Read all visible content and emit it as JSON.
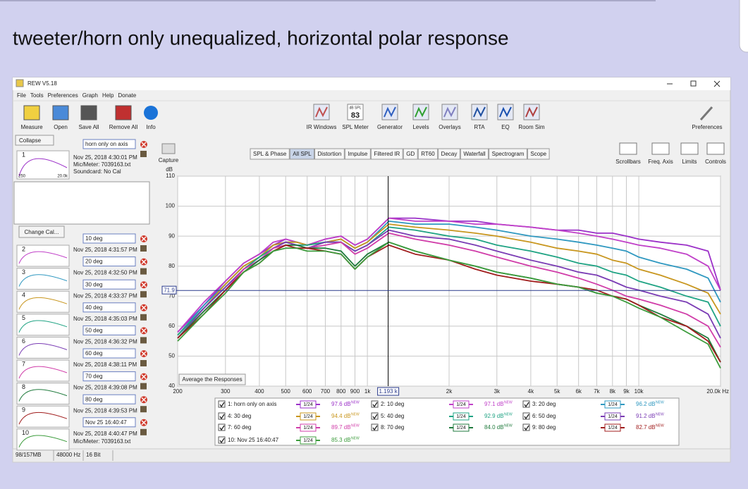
{
  "post": {
    "heading": "tweeter/horn only unequalized, horizontal polar response"
  },
  "window": {
    "title": "REW V5.18",
    "menu": [
      "File",
      "Tools",
      "Preferences",
      "Graph",
      "Help",
      "Donate"
    ],
    "toolbar_left": [
      "Measure",
      "Open",
      "Save All",
      "Remove All",
      "Info"
    ],
    "toolbar_mid": [
      "IR Windows",
      "SPL Meter",
      "Generator",
      "Levels",
      "Overlays",
      "RTA",
      "EQ",
      "Room Sim"
    ],
    "spl_meter": {
      "unit": "dB SPL",
      "reading": "83"
    },
    "toolbar_right": "Preferences",
    "capture": "Capture",
    "tabs": [
      {
        "label": "SPL & Phase"
      },
      {
        "label": "All SPL",
        "active": true
      },
      {
        "label": "Distortion"
      },
      {
        "label": "Impulse"
      },
      {
        "label": "Filtered IR"
      },
      {
        "label": "GD"
      },
      {
        "label": "RT60"
      },
      {
        "label": "Decay"
      },
      {
        "label": "Waterfall"
      },
      {
        "label": "Spectrogram"
      },
      {
        "label": "Scope"
      }
    ],
    "graph_tools": [
      "Scrollbars",
      "Freq. Axis",
      "Limits",
      "Controls"
    ],
    "collapse": "Collapse",
    "change_cal": "Change Cal...",
    "average_button": "Average the Responses",
    "measurements": [
      {
        "number": "1",
        "name": "horn only on axis",
        "date": "Nov 25, 2018 4:30:01 PM",
        "mic": "Mic/Meter: 7039163.txt",
        "soundcard": "Soundcard: No Cal",
        "thumb_range": [
          "250",
          "20.0k"
        ]
      },
      {
        "number": "2",
        "name": "10 deg",
        "date": "Nov 25, 2018 4:31:57 PM"
      },
      {
        "number": "3",
        "name": "20 deg",
        "date": "Nov 25, 2018 4:32:50 PM"
      },
      {
        "number": "4",
        "name": "30 deg",
        "date": "Nov 25, 2018 4:33:37 PM"
      },
      {
        "number": "5",
        "name": "40 deg",
        "date": "Nov 25, 2018 4:35:03 PM"
      },
      {
        "number": "6",
        "name": "50 deg",
        "date": "Nov 25, 2018 4:36:32 PM"
      },
      {
        "number": "7",
        "name": "60 deg",
        "date": "Nov 25, 2018 4:38:11 PM"
      },
      {
        "number": "8",
        "name": "70 deg",
        "date": "Nov 25, 2018 4:39:08 PM"
      },
      {
        "number": "9",
        "name": "80 deg",
        "date": "Nov 25, 2018 4:39:53 PM"
      },
      {
        "number": "10",
        "name": "Nov 25 16:40:47",
        "date": "Nov 25, 2018 4:40:47 PM",
        "mic": "Mic/Meter: 7039163.txt"
      }
    ],
    "status": [
      "98/157MB",
      "48000 Hz",
      "16 Bit"
    ]
  },
  "chart_data": {
    "type": "line",
    "xscale": "log",
    "grid": true,
    "ylabel": "dB",
    "xlim": [
      200,
      20000
    ],
    "ylim": [
      40,
      110
    ],
    "xticks": [
      200,
      300,
      400,
      500,
      600,
      700,
      800,
      900,
      {
        "value": 1000,
        "label": "1k"
      },
      {
        "value": 2000,
        "label": "2k"
      },
      {
        "value": 3000,
        "label": "3k"
      },
      {
        "value": 4000,
        "label": "4k"
      },
      {
        "value": 5000,
        "label": "5k"
      },
      {
        "value": 6000,
        "label": "6k"
      },
      {
        "value": 7000,
        "label": "7k"
      },
      {
        "value": 8000,
        "label": "8k"
      },
      {
        "value": 9000,
        "label": "9k"
      },
      {
        "value": 10000,
        "label": "10k"
      },
      {
        "value": 20000,
        "label": "20.0k Hz"
      }
    ],
    "yticks": [
      40,
      50,
      60,
      70,
      80,
      90,
      100,
      110
    ],
    "cursor": {
      "x": {
        "value": 1193,
        "label": "1.193 k"
      },
      "y": 71.9
    },
    "legend_smoothing": "1/24",
    "legend_tag": "NEW",
    "x": [
      200,
      250,
      300,
      350,
      400,
      450,
      500,
      550,
      600,
      700,
      800,
      900,
      1000,
      1200,
      1500,
      2000,
      2500,
      3000,
      4000,
      5000,
      6000,
      7000,
      8000,
      9000,
      10000,
      12000,
      15000,
      18000,
      20000
    ],
    "series": [
      {
        "name": "1: horn only on axis",
        "color": "#9b30c8",
        "level": "97.6 dB",
        "values": [
          58,
          67,
          75,
          81,
          84,
          87,
          89,
          88,
          87,
          89,
          90,
          87,
          89,
          96,
          96,
          95,
          95,
          94,
          93,
          92,
          92,
          91,
          91,
          90,
          89,
          88,
          87,
          85,
          72
        ]
      },
      {
        "name": "2: 10 deg",
        "color": "#c040c8",
        "level": "97.1 dB",
        "values": [
          58,
          68,
          75,
          81,
          84,
          88,
          89,
          88,
          87,
          89,
          90,
          87,
          89,
          96,
          95,
          95,
          94,
          94,
          93,
          92,
          91,
          90,
          89,
          88,
          87,
          86,
          84,
          80,
          72
        ]
      },
      {
        "name": "3: 20 deg",
        "color": "#2f98c0",
        "level": "96.2 dB",
        "values": [
          57,
          67,
          74,
          80,
          83,
          87,
          88,
          88,
          87,
          88,
          89,
          86,
          88,
          95,
          94,
          94,
          93,
          92,
          90,
          89,
          88,
          87,
          86,
          85,
          83,
          81,
          79,
          76,
          68
        ]
      },
      {
        "name": "4: 30 deg",
        "color": "#c8961e",
        "level": "94.4 dB",
        "values": [
          57,
          66,
          74,
          80,
          83,
          87,
          88,
          88,
          87,
          88,
          89,
          86,
          88,
          94,
          93,
          92,
          91,
          90,
          88,
          86,
          85,
          84,
          82,
          81,
          79,
          77,
          74,
          71,
          64
        ]
      },
      {
        "name": "5: 40 deg",
        "color": "#1fa383",
        "level": "92.9 dB",
        "values": [
          57,
          66,
          73,
          79,
          83,
          86,
          88,
          87,
          87,
          88,
          88,
          85,
          87,
          93,
          92,
          90,
          89,
          87,
          85,
          83,
          81,
          80,
          78,
          77,
          75,
          73,
          70,
          68,
          60
        ]
      },
      {
        "name": "6: 50 deg",
        "color": "#7a3cb4",
        "level": "91.2 dB",
        "values": [
          56,
          66,
          73,
          79,
          82,
          86,
          88,
          87,
          86,
          88,
          88,
          85,
          87,
          92,
          90,
          89,
          87,
          85,
          82,
          80,
          78,
          77,
          75,
          73,
          72,
          70,
          68,
          64,
          56
        ]
      },
      {
        "name": "7: 60 deg",
        "color": "#d03ca8",
        "level": "89.7 dB",
        "values": [
          56,
          65,
          72,
          79,
          82,
          86,
          87,
          87,
          86,
          87,
          88,
          84,
          86,
          91,
          89,
          87,
          85,
          83,
          80,
          78,
          76,
          74,
          72,
          70,
          69,
          67,
          64,
          60,
          53
        ]
      },
      {
        "name": "8: 70 deg",
        "color": "#1f7a3c",
        "level": "84.0 dB",
        "values": [
          56,
          65,
          72,
          78,
          82,
          85,
          87,
          87,
          86,
          86,
          85,
          80,
          84,
          88,
          85,
          82,
          80,
          78,
          76,
          74,
          73,
          71,
          70,
          69,
          67,
          64,
          60,
          56,
          48
        ]
      },
      {
        "name": "9: 80 deg",
        "color": "#a01c1c",
        "level": "82.7 dB",
        "values": [
          56,
          64,
          72,
          78,
          81,
          85,
          87,
          86,
          86,
          85,
          84,
          79,
          83,
          87,
          84,
          82,
          79,
          77,
          75,
          74,
          73,
          72,
          70,
          69,
          67,
          63,
          60,
          55,
          48
        ]
      },
      {
        "name": "10: Nov 25 16:40:47",
        "color": "#3c9c3c",
        "level": "85.3 dB",
        "values": [
          55,
          64,
          71,
          78,
          81,
          85,
          86,
          86,
          85,
          85,
          84,
          79,
          83,
          88,
          85,
          82,
          80,
          78,
          76,
          74,
          73,
          71,
          70,
          68,
          66,
          63,
          58,
          54,
          46
        ]
      }
    ]
  }
}
